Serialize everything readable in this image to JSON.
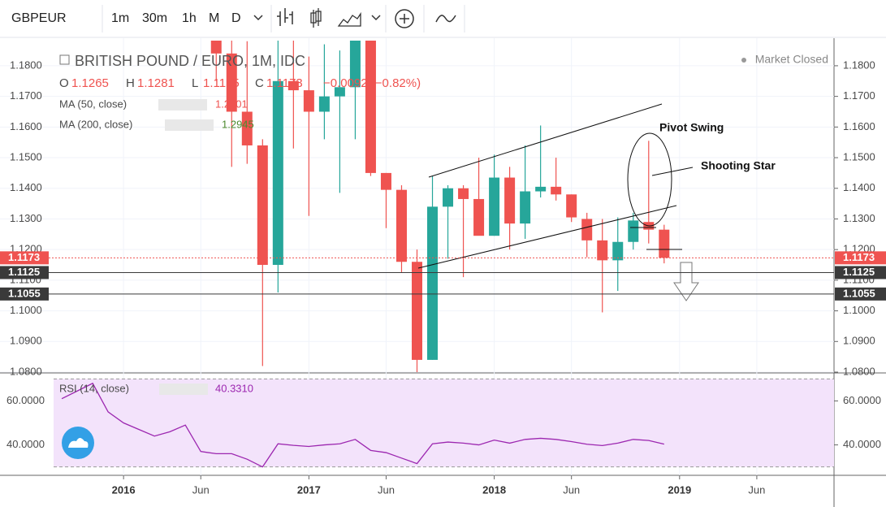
{
  "toolbar": {
    "symbol": "GBPEUR",
    "intervals": [
      "1m",
      "30m",
      "1h",
      "M",
      "D"
    ],
    "active": "M"
  },
  "chart_data": [
    {
      "type": "candlestick",
      "title": "BRITISH POUND / EURO, 1M, IDC",
      "status": "Market Closed",
      "ohlc_legend": [
        {
          "name": "O",
          "value": 1.1265
        },
        {
          "name": "H",
          "value": 1.1281
        },
        {
          "name": "L",
          "value": 1.1155
        },
        {
          "name": "C",
          "value": 1.1173
        }
      ],
      "change": "−0.0092 (−0.82%)",
      "indicators": [
        {
          "name": "MA (50, close)",
          "value": 1.2201,
          "color": "#ef5350"
        },
        {
          "name": "MA (200, close)",
          "value": 1.2945,
          "color": "#4c8a2e"
        }
      ],
      "x": [
        "2016-07",
        "2016-08",
        "2016-09",
        "2016-10",
        "2016-11",
        "2016-12",
        "2017-01",
        "2017-02",
        "2017-03",
        "2017-04",
        "2017-05",
        "2017-06",
        "2017-07",
        "2017-08",
        "2017-09",
        "2017-10",
        "2017-11",
        "2017-12",
        "2018-01",
        "2018-02",
        "2018-03",
        "2018-04",
        "2018-05",
        "2018-06",
        "2018-07",
        "2018-08",
        "2018-09",
        "2018-10",
        "2018-11",
        "2018-12"
      ],
      "open": [
        1.2,
        1.184,
        1.165,
        1.154,
        1.115,
        1.175,
        1.172,
        1.165,
        1.17,
        1.173,
        1.192,
        1.145,
        1.1395,
        1.116,
        1.084,
        1.134,
        1.14,
        1.1365,
        1.1245,
        1.1435,
        1.1285,
        1.139,
        1.1405,
        1.138,
        1.13,
        1.123,
        1.1165,
        1.1225,
        1.129,
        1.1265
      ],
      "high": [
        1.215,
        1.195,
        1.188,
        1.156,
        1.19,
        1.19,
        1.183,
        1.187,
        1.185,
        1.195,
        1.195,
        1.145,
        1.141,
        1.12,
        1.144,
        1.141,
        1.141,
        1.15,
        1.151,
        1.147,
        1.154,
        1.1605,
        1.15,
        1.138,
        1.132,
        1.13,
        1.1305,
        1.132,
        1.1555,
        1.1281
      ],
      "low": [
        1.175,
        1.147,
        1.148,
        1.082,
        1.106,
        1.153,
        1.131,
        1.156,
        1.1385,
        1.156,
        1.144,
        1.127,
        1.1125,
        1.08,
        1.084,
        1.117,
        1.111,
        1.125,
        1.1245,
        1.12,
        1.1235,
        1.137,
        1.136,
        1.129,
        1.1175,
        1.0995,
        1.1065,
        1.12,
        1.122,
        1.1155
      ],
      "close": [
        1.184,
        1.165,
        1.154,
        1.115,
        1.175,
        1.172,
        1.165,
        1.17,
        1.173,
        1.192,
        1.145,
        1.1395,
        1.116,
        1.084,
        1.134,
        1.14,
        1.1365,
        1.1245,
        1.1435,
        1.1285,
        1.139,
        1.1405,
        1.138,
        1.1305,
        1.123,
        1.1165,
        1.1225,
        1.1295,
        1.1265,
        1.1173
      ],
      "up_color": "#26a69a",
      "down_color": "#ef5350",
      "xlim": [
        "2015-05",
        "2019-11"
      ],
      "xticks": [
        {
          "value": "2016-01",
          "label": "2016"
        },
        {
          "value": "2016-06",
          "label": "Jun"
        },
        {
          "value": "2017-01",
          "label": "2017"
        },
        {
          "value": "2017-06",
          "label": "Jun"
        },
        {
          "value": "2018-01",
          "label": "2018"
        },
        {
          "value": "2018-06",
          "label": "Jun"
        },
        {
          "value": "2019-01",
          "label": "2019"
        },
        {
          "value": "2019-06",
          "label": "Jun"
        }
      ],
      "ylim": [
        1.08,
        1.1882
      ],
      "yticks": [
        {
          "value": 1.08,
          "label": "1.0800"
        },
        {
          "value": 1.09,
          "label": "1.0900"
        },
        {
          "value": 1.1,
          "label": "1.1000"
        },
        {
          "value": 1.11,
          "label": "1.1100"
        },
        {
          "value": 1.12,
          "label": "1.1200"
        },
        {
          "value": 1.13,
          "label": "1.1300"
        },
        {
          "value": 1.14,
          "label": "1.1400"
        },
        {
          "value": 1.15,
          "label": "1.1500"
        },
        {
          "value": 1.16,
          "label": "1.1600"
        },
        {
          "value": 1.17,
          "label": "1.1700"
        },
        {
          "value": 1.18,
          "label": "1.1800"
        }
      ],
      "price_lines": [
        {
          "value": 1.1173,
          "color": "#ef5350"
        },
        {
          "value": 1.1125,
          "color": "#3a3a3a"
        },
        {
          "value": 1.1055,
          "color": "#3a3a3a"
        }
      ],
      "annotations": [
        "Pivot Swing",
        "Shooting Star"
      ]
    },
    {
      "type": "line",
      "x": [
        "2015-09",
        "2015-10",
        "2015-11",
        "2015-12",
        "2016-01",
        "2016-02",
        "2016-03",
        "2016-04",
        "2016-05",
        "2016-06",
        "2016-07",
        "2016-08",
        "2016-09",
        "2016-10",
        "2016-11",
        "2016-12",
        "2017-01",
        "2017-02",
        "2017-03",
        "2017-04",
        "2017-05",
        "2017-06",
        "2017-07",
        "2017-08",
        "2017-09",
        "2017-10",
        "2017-11",
        "2017-12",
        "2018-01",
        "2018-02",
        "2018-03",
        "2018-04",
        "2018-05",
        "2018-06",
        "2018-07",
        "2018-08",
        "2018-09",
        "2018-10",
        "2018-11",
        "2018-12"
      ],
      "series": [
        {
          "name": "RSI (14, close)",
          "color": "#9c27b0",
          "values": [
            61,
            64.5,
            68,
            55,
            50,
            47,
            44,
            46,
            49,
            37,
            36,
            36,
            33.5,
            30,
            40.5,
            39.8,
            39.3,
            40,
            40.5,
            42.5,
            37.5,
            36.5,
            34,
            31.5,
            40.5,
            41.3,
            40.8,
            40,
            42.2,
            40.8,
            42.5,
            43,
            42.5,
            41.5,
            40.3,
            39.7,
            40.8,
            42.5,
            42,
            40.331
          ]
        }
      ],
      "legend_value": {
        "value": 40.331,
        "label": "40.3310"
      },
      "ylim": [
        29.5,
        70.5
      ],
      "yticks": [
        {
          "value": 60,
          "label": "60.0000"
        },
        {
          "value": 40,
          "label": "40.0000"
        }
      ],
      "band": [
        30,
        70
      ]
    }
  ]
}
